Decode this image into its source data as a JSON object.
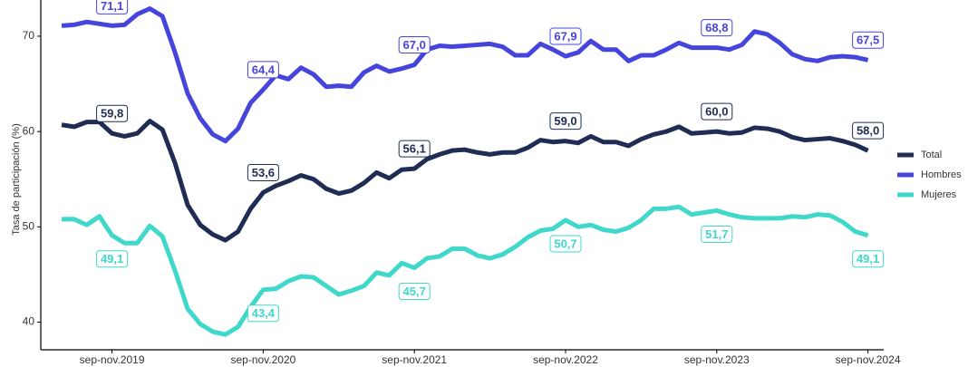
{
  "chart_data": {
    "type": "line",
    "y_label": "Tasa de participación (%)",
    "categories": [
      null,
      null,
      null,
      null,
      "sep-nov.2019",
      null,
      null,
      null,
      null,
      null,
      null,
      null,
      null,
      null,
      null,
      null,
      "sep-nov.2020",
      null,
      null,
      null,
      null,
      null,
      null,
      null,
      null,
      null,
      null,
      null,
      "sep-nov.2021",
      null,
      null,
      null,
      null,
      null,
      null,
      null,
      null,
      null,
      null,
      null,
      "sep-nov.2022",
      null,
      null,
      null,
      null,
      null,
      null,
      null,
      null,
      null,
      null,
      null,
      "sep-nov.2023",
      null,
      null,
      null,
      null,
      null,
      null,
      null,
      null,
      null,
      null,
      null,
      "sep-nov.2024"
    ],
    "ylim": [
      37.1,
      73.8
    ],
    "yticks": [
      40,
      50,
      60,
      70
    ],
    "grid": false,
    "legend": "right",
    "series": [
      {
        "name": "Total",
        "color": "#1f2d55",
        "values": [
          60.7,
          60.5,
          61.0,
          61.0,
          59.8,
          59.5,
          59.8,
          61.1,
          60.2,
          56.7,
          52.3,
          50.2,
          49.2,
          48.6,
          49.5,
          51.9,
          53.6,
          54.3,
          54.8,
          55.4,
          55.0,
          54.0,
          53.5,
          53.8,
          54.6,
          55.7,
          55.1,
          56.0,
          56.1,
          57.1,
          57.6,
          58.0,
          58.1,
          57.8,
          57.6,
          57.8,
          57.8,
          58.3,
          59.1,
          58.9,
          59.0,
          58.8,
          59.5,
          58.9,
          58.9,
          58.5,
          59.2,
          59.7,
          60.0,
          60.5,
          59.8,
          59.9,
          60.0,
          59.8,
          59.9,
          60.4,
          60.3,
          60.0,
          59.4,
          59.1,
          59.2,
          59.3,
          59.0,
          58.6,
          58.0
        ],
        "value_labels": [
          null,
          null,
          null,
          null,
          "59,8",
          null,
          null,
          null,
          null,
          null,
          null,
          null,
          null,
          null,
          null,
          null,
          "53,6",
          null,
          null,
          null,
          null,
          null,
          null,
          null,
          null,
          null,
          null,
          null,
          "56,1",
          null,
          null,
          null,
          null,
          null,
          null,
          null,
          null,
          null,
          null,
          null,
          "59,0",
          null,
          null,
          null,
          null,
          null,
          null,
          null,
          null,
          null,
          null,
          null,
          "60,0",
          null,
          null,
          null,
          null,
          null,
          null,
          null,
          null,
          null,
          null,
          null,
          "58,0"
        ]
      },
      {
        "name": "Hombres",
        "color": "#4545dc",
        "values": [
          71.1,
          71.2,
          71.5,
          71.3,
          71.1,
          71.2,
          72.3,
          72.9,
          72.1,
          68.3,
          64.0,
          61.4,
          59.7,
          59.0,
          60.3,
          63.0,
          64.4,
          65.9,
          65.5,
          66.7,
          66.0,
          64.7,
          64.8,
          64.7,
          66.2,
          66.9,
          66.3,
          66.6,
          67.0,
          68.6,
          69.0,
          68.9,
          69.0,
          69.1,
          69.2,
          68.9,
          68.0,
          68.0,
          69.2,
          68.6,
          67.9,
          68.3,
          69.5,
          68.6,
          68.6,
          67.4,
          68.0,
          68.0,
          68.6,
          69.3,
          68.8,
          68.8,
          68.8,
          68.6,
          69.1,
          70.5,
          70.2,
          69.3,
          68.1,
          67.6,
          67.4,
          67.8,
          67.9,
          67.8,
          67.5
        ],
        "value_labels": [
          null,
          null,
          null,
          null,
          "71,1",
          null,
          null,
          null,
          null,
          null,
          null,
          null,
          null,
          null,
          null,
          null,
          "64,4",
          null,
          null,
          null,
          null,
          null,
          null,
          null,
          null,
          null,
          null,
          null,
          "67,0",
          null,
          null,
          null,
          null,
          null,
          null,
          null,
          null,
          null,
          null,
          null,
          "67,9",
          null,
          null,
          null,
          null,
          null,
          null,
          null,
          null,
          null,
          null,
          null,
          "68,8",
          null,
          null,
          null,
          null,
          null,
          null,
          null,
          null,
          null,
          null,
          null,
          "67,5"
        ]
      },
      {
        "name": "Mujeres",
        "color": "#3fd8cb",
        "values": [
          50.8,
          50.8,
          50.2,
          51.1,
          49.1,
          48.3,
          48.3,
          50.1,
          49.0,
          45.4,
          41.4,
          39.8,
          39.0,
          38.7,
          39.5,
          41.6,
          43.4,
          43.5,
          44.3,
          44.8,
          44.7,
          43.8,
          42.9,
          43.3,
          43.8,
          45.2,
          44.9,
          46.2,
          45.7,
          46.7,
          46.9,
          47.7,
          47.7,
          47.0,
          46.7,
          47.1,
          47.9,
          48.9,
          49.6,
          49.8,
          50.7,
          50.0,
          50.2,
          49.7,
          49.5,
          49.9,
          50.7,
          51.9,
          51.9,
          52.1,
          51.3,
          51.5,
          51.7,
          51.3,
          51.0,
          50.9,
          50.9,
          50.9,
          51.1,
          51.0,
          51.3,
          51.2,
          50.5,
          49.5,
          49.1
        ],
        "value_labels": [
          null,
          null,
          null,
          null,
          "49,1",
          null,
          null,
          null,
          null,
          null,
          null,
          null,
          null,
          null,
          null,
          null,
          "43,4",
          null,
          null,
          null,
          null,
          null,
          null,
          null,
          null,
          null,
          null,
          null,
          "45,7",
          null,
          null,
          null,
          null,
          null,
          null,
          null,
          null,
          null,
          null,
          null,
          "50,7",
          null,
          null,
          null,
          null,
          null,
          null,
          null,
          null,
          null,
          null,
          null,
          "51,7",
          null,
          null,
          null,
          null,
          null,
          null,
          null,
          null,
          null,
          null,
          null,
          "49,1"
        ]
      }
    ]
  }
}
